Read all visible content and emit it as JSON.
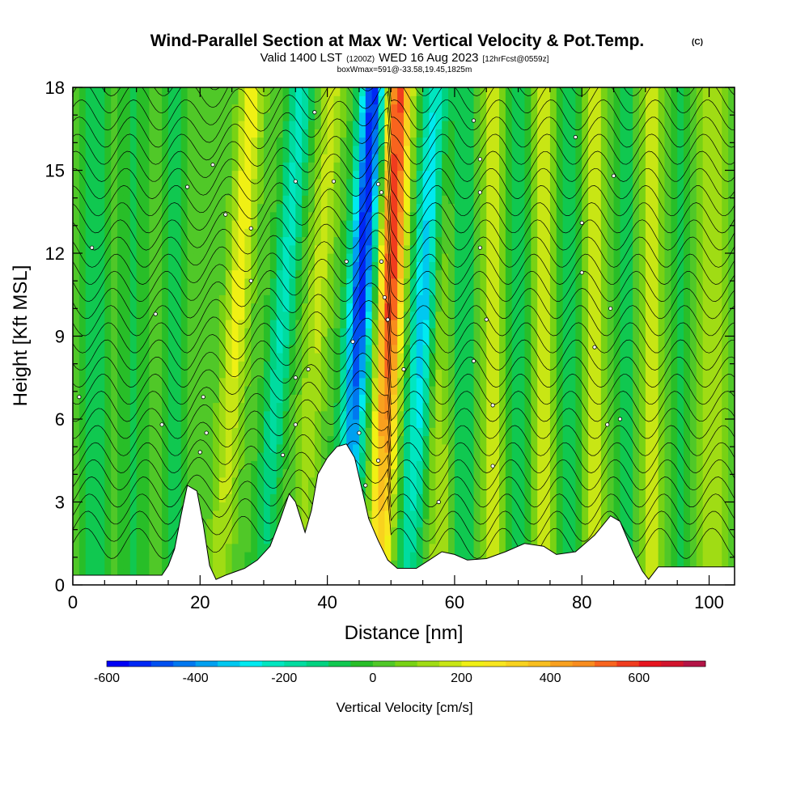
{
  "chart_data": {
    "type": "heatmap",
    "title": "Wind-Parallel Section at Max W: Vertical Velocity & Pot.Temp.",
    "title_mark": "(C)",
    "subtitle_main": "Valid 1400 LST",
    "subtitle_utc": "(1200Z)",
    "subtitle_date": "WED 16 Aug 2023",
    "subtitle_fcst": "[12hrFcst@0559z]",
    "boxinfo": "boxWmax=591@-33.58,19.45,1825m",
    "xlabel": "Distance [nm]",
    "ylabel": "Height [Kft MSL]",
    "xlim": [
      0,
      104
    ],
    "ylim": [
      0,
      18
    ],
    "xticks": [
      "0",
      "20",
      "40",
      "60",
      "80",
      "100"
    ],
    "yticks": [
      "0",
      "3",
      "6",
      "9",
      "12",
      "15",
      "18"
    ],
    "colorbar": {
      "label": "Vertical Velocity [cm/s]",
      "range": [
        -600,
        750
      ],
      "step": 50,
      "ticks": [
        "-600",
        "-400",
        "-200",
        "0",
        "200",
        "400",
        "600"
      ]
    },
    "velocity_bands": [
      {
        "x": 23.0,
        "w": 220,
        "slant": 0.24
      },
      {
        "x": 35.5,
        "w": 150,
        "slant": 0.25
      },
      {
        "x": 48.2,
        "w": 560,
        "slant": 0.14
      },
      {
        "x": 29.5,
        "w": -240,
        "slant": 0.3
      },
      {
        "x": 42.5,
        "w": -560,
        "slant": 0.22
      },
      {
        "x": 52.5,
        "w": -380,
        "slant": 0.22
      },
      {
        "x": 16.0,
        "w": -120,
        "slant": 0.0
      },
      {
        "x": 9.5,
        "w": -90,
        "slant": 0.0
      },
      {
        "x": 3.5,
        "w": -100,
        "slant": 0.0
      },
      {
        "x": 57.5,
        "w": 120,
        "slant": 0.0
      },
      {
        "x": 61.5,
        "w": -110,
        "slant": 0.0
      },
      {
        "x": 66.0,
        "w": 170,
        "slant": 0.0
      },
      {
        "x": 70.0,
        "w": -90,
        "slant": 0.0
      },
      {
        "x": 74.0,
        "w": 160,
        "slant": 0.0
      },
      {
        "x": 78.0,
        "w": -90,
        "slant": 0.0
      },
      {
        "x": 82.0,
        "w": 170,
        "slant": 0.0
      },
      {
        "x": 86.5,
        "w": -100,
        "slant": 0.0
      },
      {
        "x": 91.0,
        "w": 150,
        "slant": 0.0
      },
      {
        "x": 95.5,
        "w": -90,
        "slant": 0.0
      },
      {
        "x": 100.5,
        "w": 130,
        "slant": 0.0
      }
    ],
    "terrain": [
      [
        0,
        0.35
      ],
      [
        10,
        0.35
      ],
      [
        14,
        0.35
      ],
      [
        15,
        0.7
      ],
      [
        16,
        1.3
      ],
      [
        17,
        2.5
      ],
      [
        18,
        3.6
      ],
      [
        19.5,
        3.4
      ],
      [
        20.5,
        2.2
      ],
      [
        21.5,
        0.7
      ],
      [
        22.5,
        0.2
      ],
      [
        24,
        0.35
      ],
      [
        27,
        0.6
      ],
      [
        29,
        0.9
      ],
      [
        31,
        1.4
      ],
      [
        32.5,
        2.3
      ],
      [
        34,
        3.3
      ],
      [
        35,
        3.0
      ],
      [
        36.5,
        1.9
      ],
      [
        37.5,
        2.7
      ],
      [
        38.5,
        4.0
      ],
      [
        40,
        4.6
      ],
      [
        41.5,
        5.0
      ],
      [
        43,
        5.1
      ],
      [
        44.3,
        4.6
      ],
      [
        45.5,
        3.4
      ],
      [
        46.5,
        2.4
      ],
      [
        48,
        1.6
      ],
      [
        49.5,
        0.9
      ],
      [
        51,
        0.6
      ],
      [
        54,
        0.6
      ],
      [
        56,
        0.9
      ],
      [
        58,
        1.2
      ],
      [
        60,
        1.1
      ],
      [
        62,
        0.9
      ],
      [
        65,
        0.95
      ],
      [
        68,
        1.2
      ],
      [
        71,
        1.5
      ],
      [
        74,
        1.4
      ],
      [
        76,
        1.1
      ],
      [
        79,
        1.2
      ],
      [
        82,
        1.8
      ],
      [
        84.5,
        2.5
      ],
      [
        86,
        2.3
      ],
      [
        88,
        1.2
      ],
      [
        89.5,
        0.5
      ],
      [
        90.5,
        0.2
      ],
      [
        92,
        0.65
      ],
      [
        104,
        0.65
      ]
    ]
  }
}
